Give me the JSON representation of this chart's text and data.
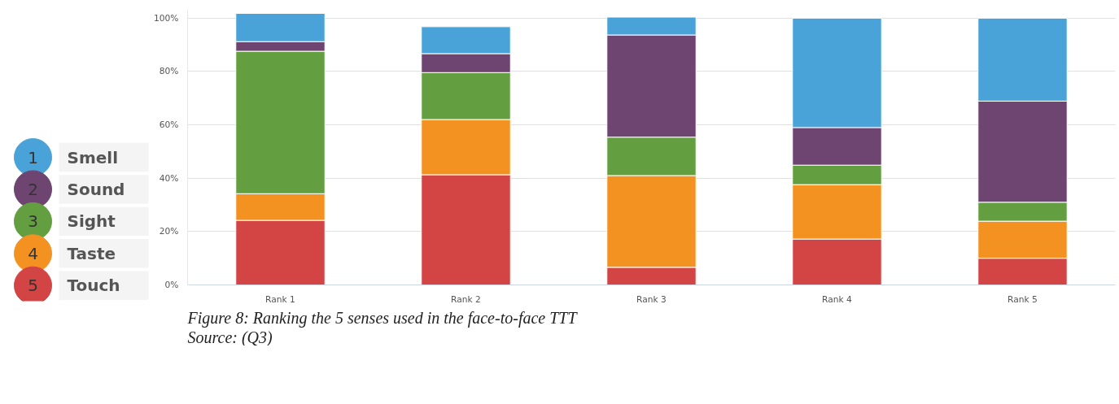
{
  "chart_data": {
    "type": "bar",
    "stacked": true,
    "categories": [
      "Rank 1",
      "Rank 2",
      "Rank 3",
      "Rank 4",
      "Rank 5"
    ],
    "series": [
      {
        "name": "Touch",
        "color": "#d34444",
        "values": [
          24.2,
          41.3,
          6.6,
          17.2,
          10.0
        ]
      },
      {
        "name": "Taste",
        "color": "#f39220",
        "values": [
          10.0,
          20.7,
          34.4,
          20.4,
          13.9
        ]
      },
      {
        "name": "Sight",
        "color": "#639e41",
        "values": [
          53.4,
          17.6,
          14.4,
          7.3,
          7.1
        ]
      },
      {
        "name": "Sound",
        "color": "#6d4570",
        "values": [
          3.6,
          7.1,
          38.3,
          14.1,
          37.9
        ]
      },
      {
        "name": "Smell",
        "color": "#4aa3d8",
        "values": [
          10.6,
          10.1,
          6.7,
          41.0,
          31.1
        ]
      }
    ],
    "ylim": [
      0,
      103
    ],
    "yticks": [
      {
        "value": 0,
        "label": "0%"
      },
      {
        "value": 20,
        "label": "20%"
      },
      {
        "value": 40,
        "label": "40%"
      },
      {
        "value": 60,
        "label": "60%"
      },
      {
        "value": 80,
        "label": "80%"
      },
      {
        "value": 100,
        "label": "100%"
      }
    ],
    "grid": "y",
    "legend": "bottom left",
    "annotations": [
      "1",
      "2",
      "3",
      "4",
      "5",
      "Figure 8: Ranking the 5 senses used in the face-to-face TTT",
      "Source: (Q3)"
    ]
  }
}
